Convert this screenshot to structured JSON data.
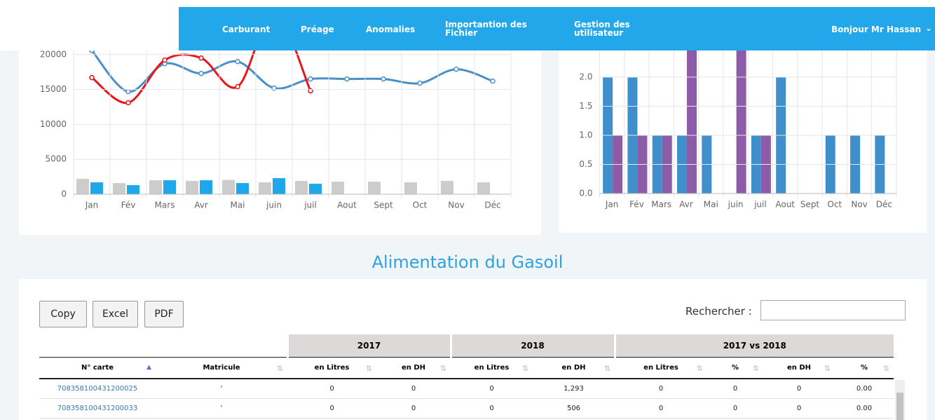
{
  "nav": {
    "items": [
      "Carburant",
      "Préage",
      "Anomalies",
      "Importantion des Fichier",
      "Gestion des utilisateur"
    ],
    "greeting": "Bonjour Mr Hassan"
  },
  "chart_data": [
    {
      "type": "combo",
      "categories": [
        "Jan",
        "Fév",
        "Mars",
        "Avr",
        "Mai",
        "juin",
        "juil",
        "Aout",
        "Sept",
        "Oct",
        "Nov",
        "Déc"
      ],
      "ylim": [
        0,
        25000
      ],
      "yticks": [
        0,
        5000,
        10000,
        15000,
        20000
      ],
      "grid": true,
      "series": [
        {
          "type": "bar",
          "color": "#cccccc",
          "values": [
            2200,
            1600,
            2000,
            1900,
            2050,
            1700,
            1900,
            1800,
            1800,
            1700,
            1900,
            1700
          ]
        },
        {
          "type": "bar",
          "color": "#1ea7ea",
          "values": [
            1700,
            1300,
            2000,
            2000,
            1600,
            2300,
            1500,
            null,
            null,
            null,
            null,
            null
          ]
        },
        {
          "type": "line",
          "color": "#4a90c8",
          "values": [
            20600,
            14700,
            18700,
            17300,
            19000,
            15200,
            16500,
            16500,
            16500,
            15900,
            17900,
            16200
          ]
        },
        {
          "type": "line",
          "color": "#e8161b",
          "values": [
            16700,
            13100,
            19200,
            19500,
            15400,
            26000,
            14800,
            null,
            null,
            null,
            null,
            null
          ]
        }
      ]
    },
    {
      "type": "bar",
      "categories": [
        "Jan",
        "Fév",
        "Mars",
        "Avr",
        "Mai",
        "juin",
        "juil",
        "Aout",
        "Sept",
        "Oct",
        "Nov",
        "Déc"
      ],
      "ylim": [
        0,
        3
      ],
      "yticks": [
        {
          "value": 0,
          "label": "0.0"
        },
        {
          "value": 0.5,
          "label": "0.5"
        },
        {
          "value": 1,
          "label": "1.0"
        },
        {
          "value": 1.5,
          "label": "1.5"
        },
        {
          "value": 2,
          "label": "2.0"
        }
      ],
      "grid": true,
      "series": [
        {
          "color": "#3f8fcc",
          "values": [
            2,
            2,
            1,
            1,
            1,
            0,
            1,
            2,
            0,
            1,
            1,
            1
          ]
        },
        {
          "color": "#8c5ca8",
          "values": [
            1,
            1,
            1,
            3,
            0,
            3,
            1,
            0,
            0,
            0,
            0,
            0
          ]
        }
      ]
    }
  ],
  "section_title": "Alimentation du Gasoil",
  "buttons": [
    "Copy",
    "Excel",
    "PDF"
  ],
  "search_label": "Rechercher :",
  "table": {
    "groups": [
      "2017",
      "2018",
      "2017 vs 2018"
    ],
    "columns": [
      "N° carte",
      "Matricule",
      "en Litres",
      "en DH",
      "en Litres",
      "en DH",
      "en Litres",
      "%",
      "en DH",
      "%"
    ],
    "rows": [
      [
        "708358100431200025",
        "'",
        "0",
        "0",
        "0",
        "1,293",
        "0",
        "0",
        "0",
        "0.00"
      ],
      [
        "708358100431200033",
        "'",
        "0",
        "0",
        "0",
        "506",
        "0",
        "0",
        "0",
        "0.00"
      ]
    ]
  }
}
